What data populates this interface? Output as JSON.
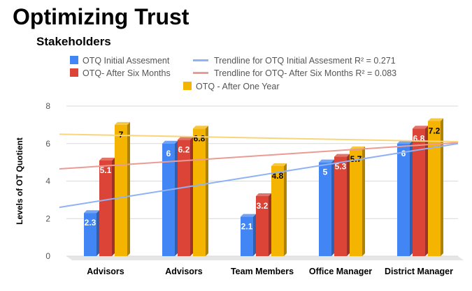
{
  "title": "Optimizing Trust",
  "subtitle": "Stakeholders",
  "chart_data": {
    "type": "bar",
    "categories": [
      "Advisors",
      "Advisors",
      "Team Members",
      "Office Manager",
      "District Manager"
    ],
    "series": [
      {
        "name": "OTQ Initial Assesment",
        "color": "#4285f4",
        "values": [
          2.3,
          6,
          2.1,
          5,
          6
        ],
        "labels": [
          "2.3",
          "6",
          "2.1",
          "5",
          "6"
        ]
      },
      {
        "name": "OTQ- After Six Months",
        "color": "#db4437",
        "values": [
          5.1,
          6.2,
          3.2,
          5.3,
          6.8
        ],
        "labels": [
          "5.1",
          "6.2",
          "3.2",
          "5.3",
          "6.8"
        ]
      },
      {
        "name": "OTQ - After One Year",
        "color": "#f4b400",
        "values": [
          7,
          6.8,
          4.8,
          5.7,
          7.2
        ],
        "labels": [
          "7",
          "6.8",
          "4.8",
          "5.7",
          "7.2"
        ]
      }
    ],
    "trendlines": [
      {
        "name": "Trendline for OTQ Initial Assesment R² = 0.271",
        "color": "#8fb2f4",
        "start": 2.6,
        "end": 6.0
      },
      {
        "name": "Trendline for OTQ- After Six Months R² = 0.083",
        "color": "#ea9c94",
        "start": 4.65,
        "end": 6.05
      },
      {
        "name": "",
        "color": "#f8d57a",
        "start": 6.5,
        "end": 6.1
      }
    ],
    "ylabel": "Levels of OT Quotient",
    "xlabel": "",
    "ylim": [
      0,
      8
    ],
    "yticks": [
      "0",
      "2",
      "4",
      "6",
      "8"
    ],
    "grid": true
  }
}
